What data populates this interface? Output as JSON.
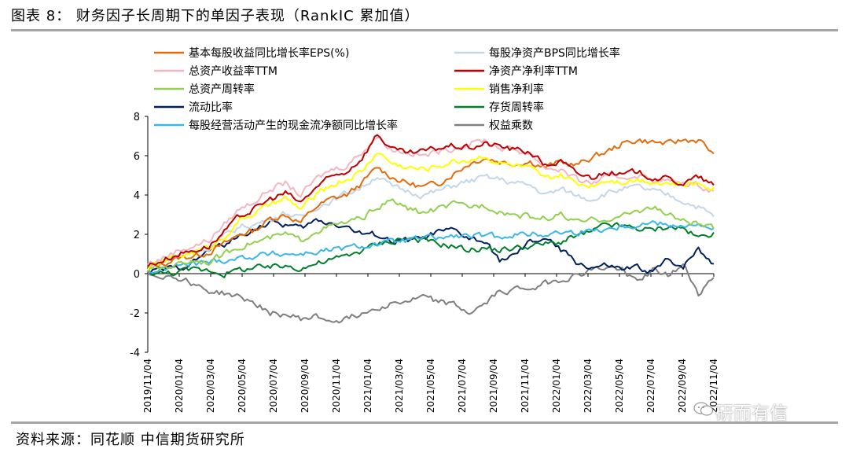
{
  "figure": {
    "title": "图表 8：  财务因子长周期下的单因子表现（RankIC 累加值）",
    "source": "资料来源：同花顺   中信期货研究所",
    "watermark": "研而有信"
  },
  "chart_data": {
    "type": "line",
    "title": "",
    "xlabel": "",
    "ylabel": "",
    "ylim": [
      -4,
      8
    ],
    "yticks": [
      "8",
      "6",
      "4",
      "2",
      "0",
      "-2",
      "-4"
    ],
    "yticks_values": [
      8,
      6,
      4,
      2,
      0,
      -2,
      -4
    ],
    "x_range": [
      "2019/11/04",
      "2022/12/30"
    ],
    "x_tick_labels": [
      "2019/11/04",
      "2020/01/04",
      "2020/03/04",
      "2020/05/04",
      "2020/07/04",
      "2020/09/04",
      "2020/11/04",
      "2021/01/04",
      "2021/03/04",
      "2021/05/04",
      "2021/07/04",
      "2021/09/04",
      "2021/11/04",
      "2022/01/04",
      "2022/03/04",
      "2022/05/04",
      "2022/07/04",
      "2022/09/04",
      "2022/11/04"
    ],
    "x_points": [
      "2019/11",
      "2019/12",
      "2020/01",
      "2020/02",
      "2020/03",
      "2020/04",
      "2020/05",
      "2020/06",
      "2020/07",
      "2020/08",
      "2020/09",
      "2020/10",
      "2020/11",
      "2020/12",
      "2021/01",
      "2021/02",
      "2021/03",
      "2021/04",
      "2021/05",
      "2021/06",
      "2021/07",
      "2021/08",
      "2021/09",
      "2021/10",
      "2021/11",
      "2021/12",
      "2022/01",
      "2022/02",
      "2022/03",
      "2022/04",
      "2022/05",
      "2022/06",
      "2022/07",
      "2022/08",
      "2022/09",
      "2022/10",
      "2022/11",
      "2022/12"
    ],
    "legend": {
      "placement": "top",
      "columns": 2
    },
    "series": [
      {
        "name": "基本每股收益同比增长率EPS(%)",
        "color": "#e46c0a",
        "values": [
          0.3,
          0.5,
          0.8,
          0.9,
          1.1,
          1.5,
          2.0,
          2.2,
          2.8,
          3.0,
          2.6,
          3.4,
          3.8,
          4.0,
          4.6,
          5.4,
          4.9,
          4.6,
          4.4,
          4.6,
          5.1,
          5.6,
          5.9,
          5.7,
          5.6,
          5.7,
          5.4,
          5.7,
          5.5,
          5.9,
          6.2,
          6.6,
          6.8,
          6.7,
          6.6,
          6.8,
          6.8,
          6.1
        ]
      },
      {
        "name": "每股净资产BPS同比增长率",
        "color": "#c5d5ea",
        "values": [
          0.4,
          0.6,
          0.9,
          1.2,
          1.3,
          1.9,
          2.4,
          2.5,
          2.8,
          3.1,
          2.8,
          3.4,
          3.7,
          4.1,
          4.4,
          5.0,
          4.4,
          4.2,
          4.0,
          4.2,
          4.5,
          4.7,
          4.9,
          4.8,
          4.6,
          4.5,
          4.0,
          4.3,
          4.0,
          3.8,
          4.1,
          4.3,
          4.4,
          4.2,
          4.0,
          3.7,
          3.4,
          2.9
        ]
      },
      {
        "name": "总资产收益率TTM",
        "color": "#f4b6c2",
        "values": [
          0.5,
          0.8,
          1.2,
          1.4,
          1.7,
          2.5,
          3.3,
          3.7,
          4.3,
          4.6,
          4.0,
          4.8,
          5.3,
          5.5,
          6.2,
          7.0,
          6.3,
          6.2,
          6.0,
          6.2,
          6.4,
          6.6,
          6.8,
          6.4,
          6.3,
          6.1,
          5.4,
          5.3,
          4.8,
          4.6,
          4.9,
          4.9,
          5.0,
          4.8,
          4.7,
          4.6,
          4.5,
          4.2
        ]
      },
      {
        "name": "净资产净利率TTM",
        "color": "#c00000",
        "values": [
          0.4,
          0.7,
          1.0,
          1.2,
          1.4,
          2.1,
          2.9,
          3.3,
          3.8,
          4.1,
          3.6,
          4.4,
          4.9,
          5.2,
          5.9,
          7.1,
          6.3,
          6.1,
          6.2,
          6.4,
          6.5,
          6.4,
          6.6,
          6.5,
          6.3,
          6.2,
          5.5,
          5.7,
          5.1,
          4.9,
          5.2,
          5.0,
          5.2,
          4.9,
          4.8,
          4.6,
          4.9,
          4.5
        ]
      },
      {
        "name": "总资产周转率",
        "color": "#92d050",
        "values": [
          0.2,
          0.3,
          0.5,
          0.7,
          0.6,
          1.0,
          1.4,
          1.6,
          1.8,
          2.0,
          1.7,
          2.2,
          2.4,
          2.6,
          2.8,
          3.4,
          3.7,
          3.3,
          3.1,
          3.3,
          3.5,
          3.4,
          3.5,
          3.2,
          3.0,
          2.9,
          2.8,
          3.0,
          2.6,
          2.7,
          2.8,
          2.9,
          3.2,
          3.4,
          3.0,
          2.7,
          2.5,
          2.3
        ]
      },
      {
        "name": "销售净利率",
        "color": "#ffff00",
        "values": [
          0.3,
          0.6,
          0.9,
          1.1,
          1.3,
          1.9,
          2.7,
          3.1,
          3.5,
          3.8,
          3.3,
          4.0,
          4.5,
          4.8,
          5.2,
          6.2,
          5.6,
          5.4,
          5.3,
          5.5,
          5.7,
          5.8,
          6.0,
          5.6,
          5.5,
          5.3,
          4.8,
          5.0,
          4.6,
          4.5,
          4.8,
          4.7,
          4.8,
          4.7,
          4.6,
          4.5,
          4.6,
          4.4
        ]
      },
      {
        "name": "流动比率",
        "color": "#002060",
        "values": [
          0.1,
          0.2,
          0.3,
          0.6,
          1.2,
          1.5,
          1.9,
          2.3,
          2.6,
          2.5,
          2.3,
          2.7,
          2.6,
          2.4,
          2.0,
          2.0,
          1.6,
          1.7,
          1.8,
          2.1,
          2.2,
          1.8,
          1.6,
          0.7,
          0.9,
          1.6,
          1.8,
          1.2,
          0.6,
          0.3,
          0.4,
          0.2,
          0.3,
          0.1,
          0.7,
          0.4,
          1.3,
          0.5
        ]
      },
      {
        "name": "存货周转率",
        "color": "#00802b",
        "values": [
          0.1,
          0.0,
          0.1,
          0.2,
          0.2,
          0.0,
          0.2,
          0.3,
          0.3,
          0.4,
          0.3,
          0.5,
          0.7,
          0.9,
          1.2,
          1.5,
          1.7,
          1.8,
          1.7,
          1.5,
          1.4,
          1.2,
          1.3,
          1.2,
          1.3,
          1.4,
          1.5,
          1.6,
          1.9,
          2.1,
          2.5,
          2.4,
          2.3,
          2.2,
          2.4,
          2.3,
          1.8,
          2.1
        ]
      },
      {
        "name": "每股经营活动产生的现金流净额同比增长率",
        "color": "#3ab7e8",
        "values": [
          0.1,
          0.2,
          0.4,
          0.5,
          0.6,
          0.7,
          0.8,
          0.9,
          1.0,
          1.0,
          1.0,
          1.1,
          1.2,
          1.3,
          1.4,
          1.5,
          1.6,
          1.7,
          1.8,
          1.8,
          1.9,
          1.9,
          1.9,
          1.9,
          2.0,
          2.0,
          2.0,
          2.1,
          2.1,
          2.2,
          2.3,
          2.4,
          2.5,
          2.6,
          2.5,
          2.5,
          2.4,
          2.3
        ]
      },
      {
        "name": "权益乘数",
        "color": "#7f7f7f",
        "values": [
          0.0,
          -0.1,
          -0.2,
          -0.5,
          -0.9,
          -1.0,
          -1.2,
          -1.5,
          -2.0,
          -2.1,
          -2.3,
          -2.2,
          -2.4,
          -2.3,
          -2.0,
          -1.7,
          -1.5,
          -1.4,
          -1.2,
          -1.4,
          -1.6,
          -2.0,
          -1.6,
          -0.9,
          -0.8,
          -0.7,
          -0.5,
          -0.3,
          -0.1,
          0.2,
          0.3,
          0.2,
          -0.4,
          0.2,
          -0.1,
          0.4,
          -1.0,
          -0.2
        ]
      }
    ]
  }
}
